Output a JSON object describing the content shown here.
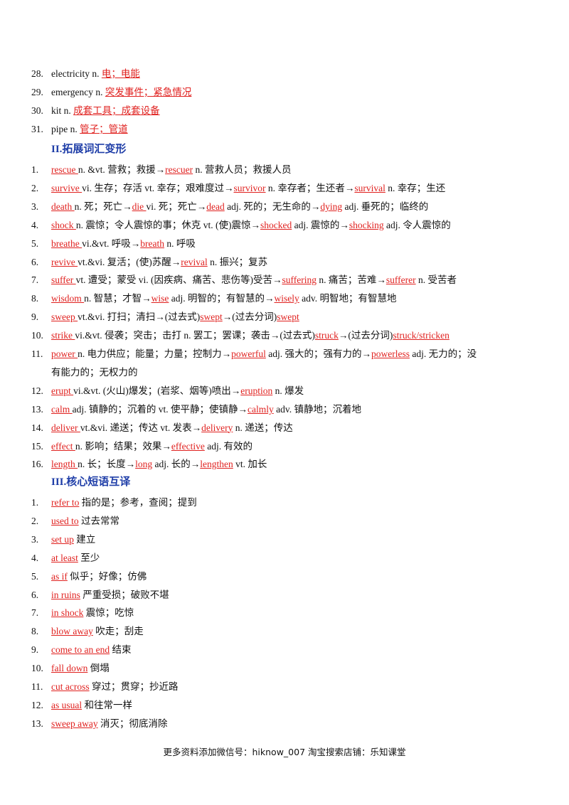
{
  "section1_items": [
    {
      "num": "28.",
      "parts": [
        {
          "t": "electricity n. "
        },
        {
          "t": "电；电能",
          "red": true
        }
      ]
    },
    {
      "num": "29.",
      "parts": [
        {
          "t": "emergency n. "
        },
        {
          "t": "突发事件；紧急情况",
          "red": true
        }
      ]
    },
    {
      "num": "30.",
      "parts": [
        {
          "t": "kit n. "
        },
        {
          "t": "成套工具；成套设备",
          "red": true
        }
      ]
    },
    {
      "num": "31.",
      "parts": [
        {
          "t": "pipe n. "
        },
        {
          "t": "管子；管道",
          "red": true
        }
      ]
    }
  ],
  "section2_title": "II.拓展词汇变形",
  "section2_items": [
    {
      "num": "1.",
      "parts": [
        {
          "t": "rescue ",
          "red": true
        },
        {
          "t": "n. &vt. 营救；救援→"
        },
        {
          "t": "rescuer",
          "red": true
        },
        {
          "t": " n. 营救人员；救援人员"
        }
      ]
    },
    {
      "num": "2.",
      "parts": [
        {
          "t": "survive ",
          "red": true
        },
        {
          "t": "vi. 生存；存活   vt. 幸存；艰难度过→"
        },
        {
          "t": "survivor",
          "red": true
        },
        {
          "t": " n. 幸存者；生还者→"
        },
        {
          "t": "survival",
          "red": true
        },
        {
          "t": " n. 幸存；生还"
        }
      ]
    },
    {
      "num": "3.",
      "parts": [
        {
          "t": "death ",
          "red": true
        },
        {
          "t": "n. 死；死亡→"
        },
        {
          "t": "die ",
          "red": true
        },
        {
          "t": "vi. 死；死亡→"
        },
        {
          "t": "dead",
          "red": true
        },
        {
          "t": " adj. 死的；无生命的→"
        },
        {
          "t": "dying",
          "red": true
        },
        {
          "t": " adj. 垂死的；临终的"
        }
      ]
    },
    {
      "num": "4.",
      "parts": [
        {
          "t": "shock ",
          "red": true
        },
        {
          "t": "n. 震惊；令人震惊的事；休克   vt. (使)震惊→"
        },
        {
          "t": "shocked",
          "red": true
        },
        {
          "t": " adj. 震惊的→"
        },
        {
          "t": "shocking",
          "red": true
        },
        {
          "t": " adj. 令人震惊的"
        }
      ]
    },
    {
      "num": "5.",
      "parts": [
        {
          "t": "breathe ",
          "red": true
        },
        {
          "t": "vi.&vt. 呼吸→"
        },
        {
          "t": "breath",
          "red": true
        },
        {
          "t": " n. 呼吸"
        }
      ]
    },
    {
      "num": "6.",
      "parts": [
        {
          "t": "revive ",
          "red": true
        },
        {
          "t": "vt.&vi. 复活；(使)苏醒→"
        },
        {
          "t": "revival",
          "red": true
        },
        {
          "t": " n. 振兴；复苏"
        }
      ]
    },
    {
      "num": "7.",
      "parts": [
        {
          "t": "suffer ",
          "red": true
        },
        {
          "t": "vt. 遭受；蒙受   vi. (因疾病、痛苦、悲伤等)受苦→"
        },
        {
          "t": "suffering",
          "red": true
        },
        {
          "t": " n. 痛苦；苦难→"
        },
        {
          "t": "sufferer",
          "red": true
        },
        {
          "t": " n. 受苦者"
        }
      ]
    },
    {
      "num": "8.",
      "parts": [
        {
          "t": "wisdom ",
          "red": true
        },
        {
          "t": "n. 智慧；才智→"
        },
        {
          "t": "wise",
          "red": true
        },
        {
          "t": " adj. 明智的；有智慧的→"
        },
        {
          "t": "wisely",
          "red": true
        },
        {
          "t": " adv. 明智地；有智慧地"
        }
      ]
    },
    {
      "num": "9.",
      "parts": [
        {
          "t": "sweep ",
          "red": true
        },
        {
          "t": "vt.&vi. 打扫；清扫→(过去式)"
        },
        {
          "t": "swept",
          "red": true
        },
        {
          "t": "→(过去分词)"
        },
        {
          "t": "swept",
          "red": true
        }
      ]
    },
    {
      "num": "10.",
      "parts": [
        {
          "t": "strike ",
          "red": true
        },
        {
          "t": "vi.&vt. 侵袭；突击；击打   n. 罢工；罢课；袭击→(过去式)"
        },
        {
          "t": "struck",
          "red": true
        },
        {
          "t": "→(过去分词)"
        },
        {
          "t": "struck/stricken",
          "red": true
        }
      ]
    },
    {
      "num": "11.",
      "parts": [
        {
          "t": "power ",
          "red": true
        },
        {
          "t": "n. 电力供应；能量；力量；控制力→"
        },
        {
          "t": "powerful",
          "red": true
        },
        {
          "t": " adj. 强大的；强有力的→"
        },
        {
          "t": "powerless",
          "red": true
        },
        {
          "t": " adj. 无力的；没"
        }
      ]
    },
    {
      "num": "",
      "parts": [
        {
          "t": "有能力的；无权力的"
        }
      ]
    },
    {
      "num": "12.",
      "parts": [
        {
          "t": "erupt ",
          "red": true
        },
        {
          "t": "vi.&vt. (火山)爆发；(岩浆、烟等)喷出→"
        },
        {
          "t": "eruption",
          "red": true
        },
        {
          "t": " n. 爆发"
        }
      ]
    },
    {
      "num": "13.",
      "parts": [
        {
          "t": "calm ",
          "red": true
        },
        {
          "t": "adj. 镇静的；沉着的   vt. 使平静；使镇静→"
        },
        {
          "t": "calmly",
          "red": true
        },
        {
          "t": " adv. 镇静地；沉着地"
        }
      ]
    },
    {
      "num": "14.",
      "parts": [
        {
          "t": "deliver ",
          "red": true
        },
        {
          "t": "vt.&vi. 递送；传达   vt. 发表→"
        },
        {
          "t": "delivery",
          "red": true
        },
        {
          "t": " n. 递送；传达"
        }
      ]
    },
    {
      "num": "15.",
      "parts": [
        {
          "t": "effect ",
          "red": true
        },
        {
          "t": "n. 影响；结果；效果→"
        },
        {
          "t": "effective",
          "red": true
        },
        {
          "t": " adj. 有效的"
        }
      ]
    },
    {
      "num": "16.",
      "parts": [
        {
          "t": "length ",
          "red": true
        },
        {
          "t": "n. 长；长度→"
        },
        {
          "t": "long",
          "red": true
        },
        {
          "t": " adj. 长的→"
        },
        {
          "t": "lengthen",
          "red": true
        },
        {
          "t": " vt. 加长"
        }
      ]
    }
  ],
  "section3_title": "III.核心短语互译",
  "section3_items": [
    {
      "num": "1.",
      "parts": [
        {
          "t": "refer to",
          "red": true
        },
        {
          "t": " 指的是；参考，查阅；提到"
        }
      ]
    },
    {
      "num": "2.",
      "parts": [
        {
          "t": "used to",
          "red": true
        },
        {
          "t": " 过去常常"
        }
      ]
    },
    {
      "num": "3.",
      "parts": [
        {
          "t": "set up",
          "red": true
        },
        {
          "t": " 建立"
        }
      ]
    },
    {
      "num": "4.",
      "parts": [
        {
          "t": "at least",
          "red": true
        },
        {
          "t": " 至少"
        }
      ]
    },
    {
      "num": "5.",
      "parts": [
        {
          "t": "as if",
          "red": true
        },
        {
          "t": " 似乎；好像；仿佛"
        }
      ]
    },
    {
      "num": "6.",
      "parts": [
        {
          "t": "in ruins",
          "red": true
        },
        {
          "t": " 严重受损；破败不堪"
        }
      ]
    },
    {
      "num": "7.",
      "parts": [
        {
          "t": "in shock",
          "red": true
        },
        {
          "t": " 震惊；吃惊"
        }
      ]
    },
    {
      "num": "8.",
      "parts": [
        {
          "t": "blow away",
          "red": true
        },
        {
          "t": " 吹走；刮走"
        }
      ]
    },
    {
      "num": "9.",
      "parts": [
        {
          "t": "come to an end",
          "red": true
        },
        {
          "t": " 结束"
        }
      ]
    },
    {
      "num": "10.",
      "parts": [
        {
          "t": "fall down",
          "red": true
        },
        {
          "t": " 倒塌"
        }
      ]
    },
    {
      "num": "11.",
      "parts": [
        {
          "t": "cut across",
          "red": true
        },
        {
          "t": " 穿过；贯穿；抄近路"
        }
      ]
    },
    {
      "num": "12.",
      "parts": [
        {
          "t": "as usual",
          "red": true
        },
        {
          "t": " 和往常一样"
        }
      ]
    },
    {
      "num": "13.",
      "parts": [
        {
          "t": "sweep away",
          "red": true
        },
        {
          "t": " 消灭；彻底消除"
        }
      ]
    }
  ],
  "footer": "更多资料添加微信号：hiknow_007   淘宝搜索店铺：乐知课堂"
}
